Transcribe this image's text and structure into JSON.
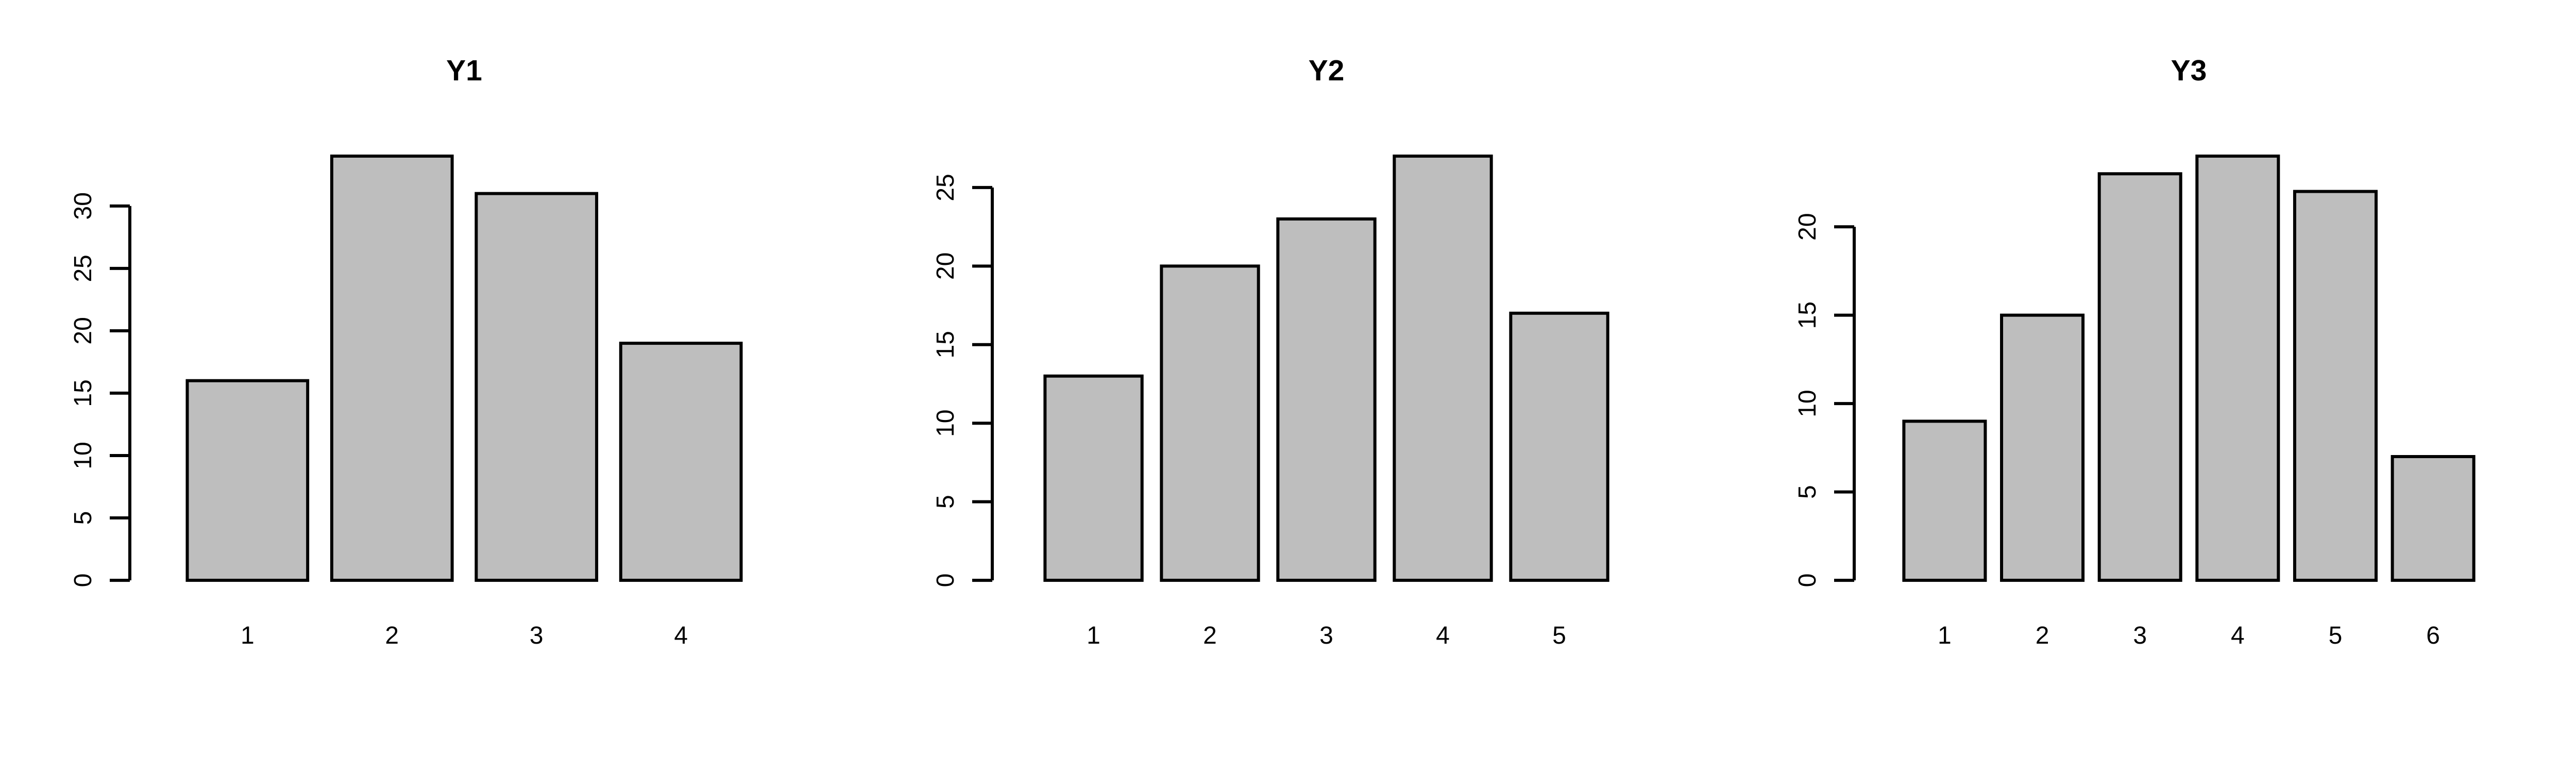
{
  "figure": {
    "background": "#ffffff",
    "bar_fill": "#bebebe",
    "stroke": "#000000"
  },
  "chart_data": [
    {
      "type": "bar",
      "title": "Y1",
      "xlabel": "",
      "ylabel": "",
      "categories": [
        "1",
        "2",
        "3",
        "4"
      ],
      "values": [
        16,
        34,
        31,
        19
      ],
      "ylim": [
        0,
        34
      ],
      "yticks": [
        0,
        5,
        10,
        15,
        20,
        25,
        30
      ],
      "grid": false
    },
    {
      "type": "bar",
      "title": "Y2",
      "xlabel": "",
      "ylabel": "",
      "categories": [
        "1",
        "2",
        "3",
        "4",
        "5"
      ],
      "values": [
        13,
        20,
        23,
        27,
        17
      ],
      "ylim": [
        0,
        27
      ],
      "yticks": [
        0,
        5,
        10,
        15,
        20,
        25
      ],
      "grid": false
    },
    {
      "type": "bar",
      "title": "Y3",
      "xlabel": "",
      "ylabel": "",
      "categories": [
        "1",
        "2",
        "3",
        "4",
        "5",
        "6"
      ],
      "values": [
        9,
        15,
        23,
        24,
        22,
        7
      ],
      "ylim": [
        0,
        24
      ],
      "yticks": [
        0,
        5,
        10,
        15,
        20
      ],
      "grid": false
    }
  ]
}
